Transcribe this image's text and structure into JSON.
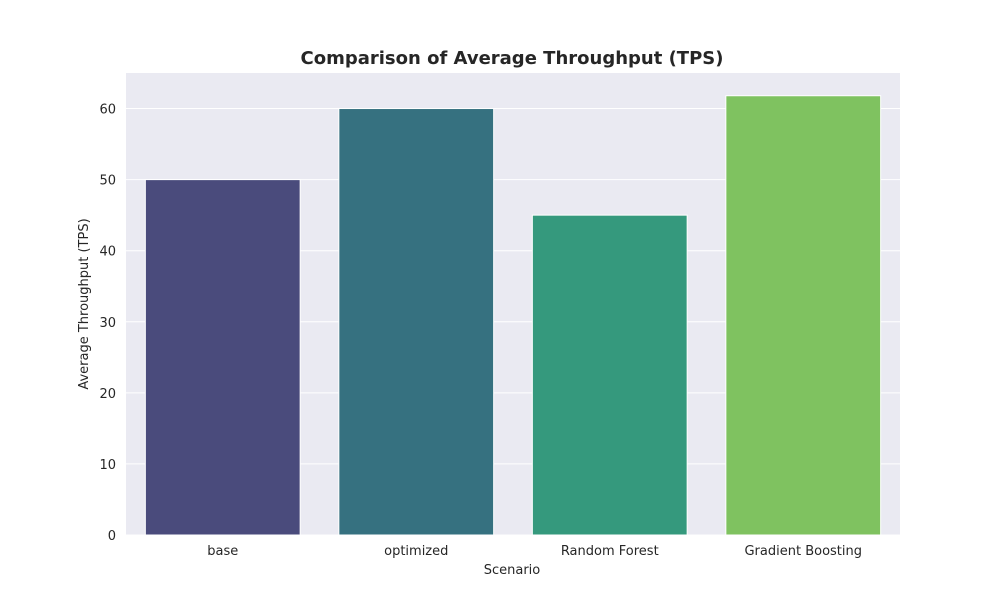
{
  "chart_data": {
    "type": "bar",
    "title": "Comparison of Average Throughput (TPS)",
    "xlabel": "Scenario",
    "ylabel": "Average Throughput (TPS)",
    "categories": [
      "base",
      "optimized",
      "Random Forest",
      "Gradient Boosting"
    ],
    "values": [
      50,
      60,
      45,
      61.8
    ],
    "colors": [
      "#4a4b7c",
      "#367180",
      "#35997d",
      "#7fc260"
    ],
    "ylim": [
      0,
      65
    ],
    "yticks": [
      0,
      10,
      20,
      30,
      40,
      50,
      60
    ],
    "grid": true,
    "background": "#eaeaf2",
    "legend": "none"
  }
}
